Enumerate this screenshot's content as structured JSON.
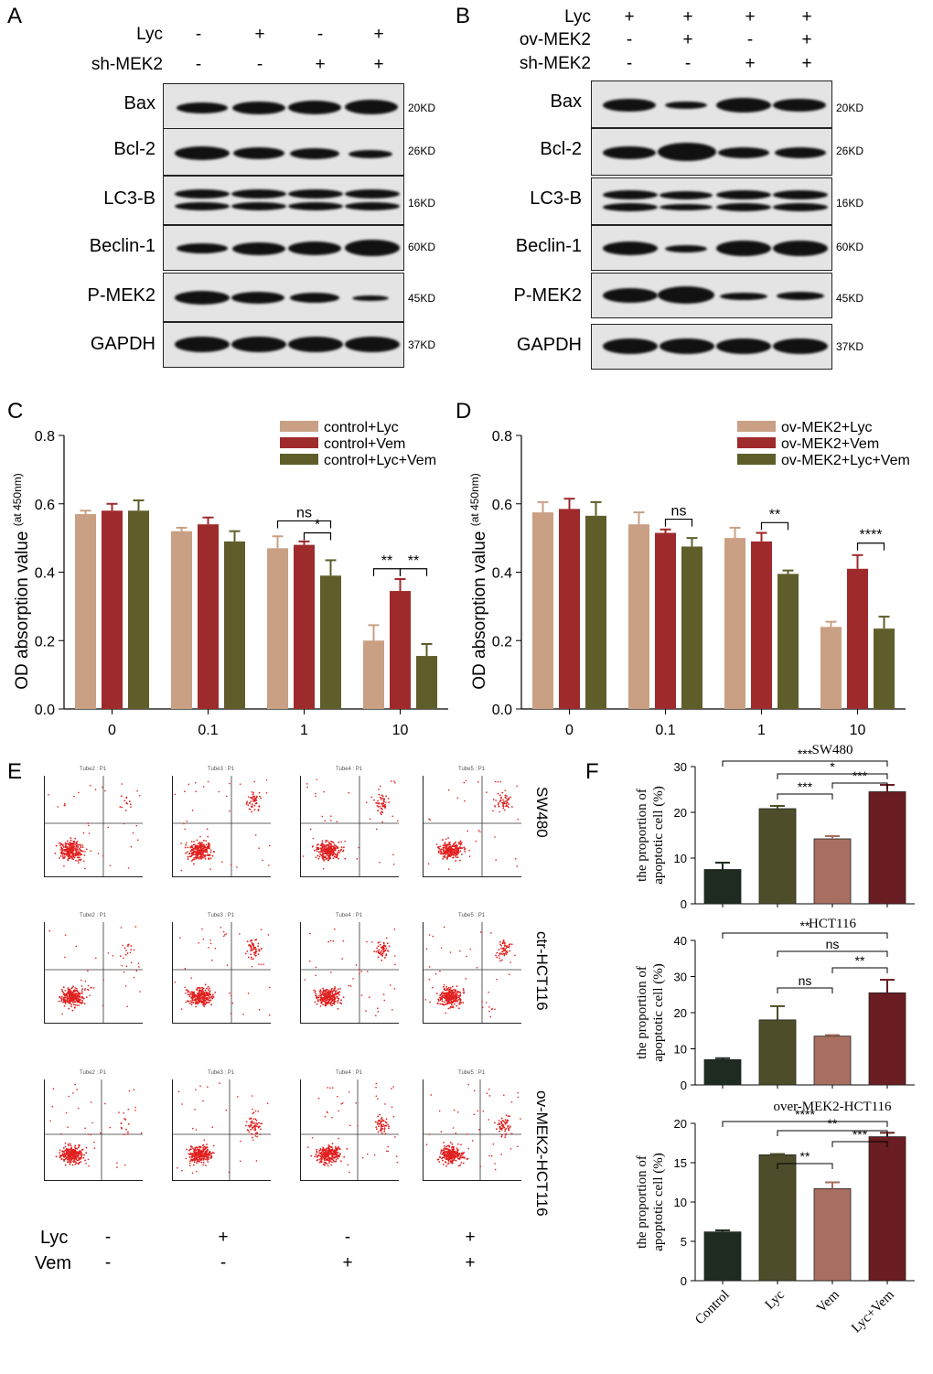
{
  "panels": {
    "A": "A",
    "B": "B",
    "C": "C",
    "D": "D",
    "E": "E",
    "F": "F"
  },
  "panel_a": {
    "row_labels": [
      "Lyc",
      "sh-MEK2"
    ],
    "signs": [
      [
        "-",
        "+",
        "-",
        "+"
      ],
      [
        "-",
        "-",
        "+",
        "+"
      ]
    ],
    "blots": [
      {
        "name": "Bax",
        "kd": "20KD"
      },
      {
        "name": "Bcl-2",
        "kd": "26KD"
      },
      {
        "name": "LC3-B",
        "kd": "16KD"
      },
      {
        "name": "Beclin-1",
        "kd": "60KD"
      },
      {
        "name": "P-MEK2",
        "kd": "45KD"
      },
      {
        "name": "GAPDH",
        "kd": "37KD"
      }
    ]
  },
  "panel_b": {
    "row_labels": [
      "Lyc",
      "ov-MEK2",
      "sh-MEK2"
    ],
    "signs": [
      [
        "+",
        "+",
        "+",
        "+"
      ],
      [
        "-",
        "+",
        "-",
        "+"
      ],
      [
        "-",
        "-",
        "+",
        "+"
      ]
    ],
    "blots": [
      {
        "name": "Bax",
        "kd": "20KD"
      },
      {
        "name": "Bcl-2",
        "kd": "26KD"
      },
      {
        "name": "LC3-B",
        "kd": "16KD"
      },
      {
        "name": "Beclin-1",
        "kd": "60KD"
      },
      {
        "name": "P-MEK2",
        "kd": "45KD"
      },
      {
        "name": "GAPDH",
        "kd": "37KD"
      }
    ]
  },
  "panel_e": {
    "row_labels": [
      "SW480",
      "ctr-HCT116",
      "ov-MEK2-HCT116"
    ],
    "bottom_rows": [
      "Lyc",
      "Vem"
    ],
    "bottom_signs": [
      [
        "-",
        "+",
        "-",
        "+"
      ],
      [
        "-",
        "-",
        "+",
        "+"
      ]
    ],
    "plot_titles": [
      [
        "Tube2 : P1",
        "Tube3 : P1",
        "Tube4 : P1",
        "Tube5 : P1"
      ],
      [
        "Tube2 : P1",
        "Tube3 : P1",
        "Tube4 : P1",
        "Tube5 : P1"
      ],
      [
        "Tube2 : P1",
        "Tube3 : P1",
        "Tube4 : P1",
        "Tube5 : P1"
      ]
    ]
  },
  "colors": {
    "tan": "#c9a084",
    "red": "#9e2a2b",
    "olive": "#5f5e2a",
    "f_control": "#1d2b20",
    "f_lyc": "#4d4d2a",
    "f_vem": "#a86f60",
    "f_lycvem": "#6a1d22"
  },
  "chart_data": [
    {
      "id": "C",
      "type": "bar",
      "title": "",
      "ylabel": "OD absorption value",
      "ylabel_sub": "(at 450nm)",
      "categories": [
        "0",
        "0.1",
        "1",
        "10"
      ],
      "ylim": [
        0,
        0.8
      ],
      "yticks": [
        "0.0",
        "0.2",
        "0.4",
        "0.6",
        "0.8"
      ],
      "series": [
        {
          "name": "control+Lyc",
          "values": [
            0.57,
            0.52,
            0.47,
            0.2
          ],
          "errors": [
            0.01,
            0.01,
            0.035,
            0.045
          ]
        },
        {
          "name": "control+Vem",
          "values": [
            0.58,
            0.54,
            0.48,
            0.345
          ],
          "errors": [
            0.02,
            0.02,
            0.01,
            0.035
          ]
        },
        {
          "name": "control+Lyc+Vem",
          "values": [
            0.58,
            0.49,
            0.39,
            0.155
          ],
          "errors": [
            0.03,
            0.03,
            0.045,
            0.035
          ]
        }
      ],
      "annotations": [
        "ns",
        "*",
        "**",
        "**"
      ]
    },
    {
      "id": "D",
      "type": "bar",
      "title": "",
      "ylabel": "OD absorption value",
      "ylabel_sub": "(at 450nm)",
      "categories": [
        "0",
        "0.1",
        "1",
        "10"
      ],
      "ylim": [
        0,
        0.8
      ],
      "yticks": [
        "0.0",
        "0.2",
        "0.4",
        "0.6",
        "0.8"
      ],
      "series": [
        {
          "name": "ov-MEK2+Lyc",
          "values": [
            0.575,
            0.54,
            0.5,
            0.24
          ],
          "errors": [
            0.03,
            0.035,
            0.03,
            0.015
          ]
        },
        {
          "name": "ov-MEK2+Vem",
          "values": [
            0.585,
            0.515,
            0.49,
            0.41
          ],
          "errors": [
            0.03,
            0.01,
            0.025,
            0.04
          ]
        },
        {
          "name": "ov-MEK2+Lyc+Vem",
          "values": [
            0.565,
            0.475,
            0.395,
            0.235
          ],
          "errors": [
            0.04,
            0.025,
            0.01,
            0.035
          ]
        }
      ],
      "annotations": [
        "ns",
        "**",
        "****"
      ]
    },
    {
      "id": "F1",
      "type": "bar",
      "title": "SW480",
      "ylabel": "the proportion of",
      "ylabel2": "apoptotic cell (%)",
      "categories": [
        "Control",
        "Lyc",
        "Vem",
        "Lyc+Vem"
      ],
      "ylim": [
        0,
        30
      ],
      "yticks": [
        "0",
        "10",
        "20",
        "30"
      ],
      "values": [
        7.5,
        20.8,
        14.2,
        24.5
      ],
      "errors": [
        1.5,
        0.6,
        0.6,
        1.5
      ],
      "annotations": [
        "***",
        "*",
        "***",
        "***"
      ]
    },
    {
      "id": "F2",
      "type": "bar",
      "title": "HCT116",
      "ylabel": "the proportion of",
      "ylabel2": "apoptotic cell (%)",
      "categories": [
        "Control",
        "Lyc",
        "Vem",
        "Lyc+Vem"
      ],
      "ylim": [
        0,
        40
      ],
      "yticks": [
        "0",
        "10",
        "20",
        "30",
        "40"
      ],
      "values": [
        7.0,
        18.0,
        13.5,
        25.5
      ],
      "errors": [
        0.4,
        3.8,
        0.3,
        3.6
      ],
      "annotations": [
        "**",
        "ns",
        "**",
        "ns"
      ]
    },
    {
      "id": "F3",
      "type": "bar",
      "title": "over-MEK2-HCT116",
      "ylabel": "the proportion of",
      "ylabel2": "apoptotic cell (%)",
      "categories": [
        "Control",
        "Lyc",
        "Vem",
        "Lyc+Vem"
      ],
      "ylim": [
        0,
        20
      ],
      "yticks": [
        "0",
        "5",
        "10",
        "15",
        "20"
      ],
      "values": [
        6.2,
        16.0,
        11.7,
        18.3
      ],
      "errors": [
        0.2,
        0.1,
        0.8,
        0.5
      ],
      "annotations": [
        "****",
        "**",
        "***",
        "**"
      ]
    }
  ]
}
